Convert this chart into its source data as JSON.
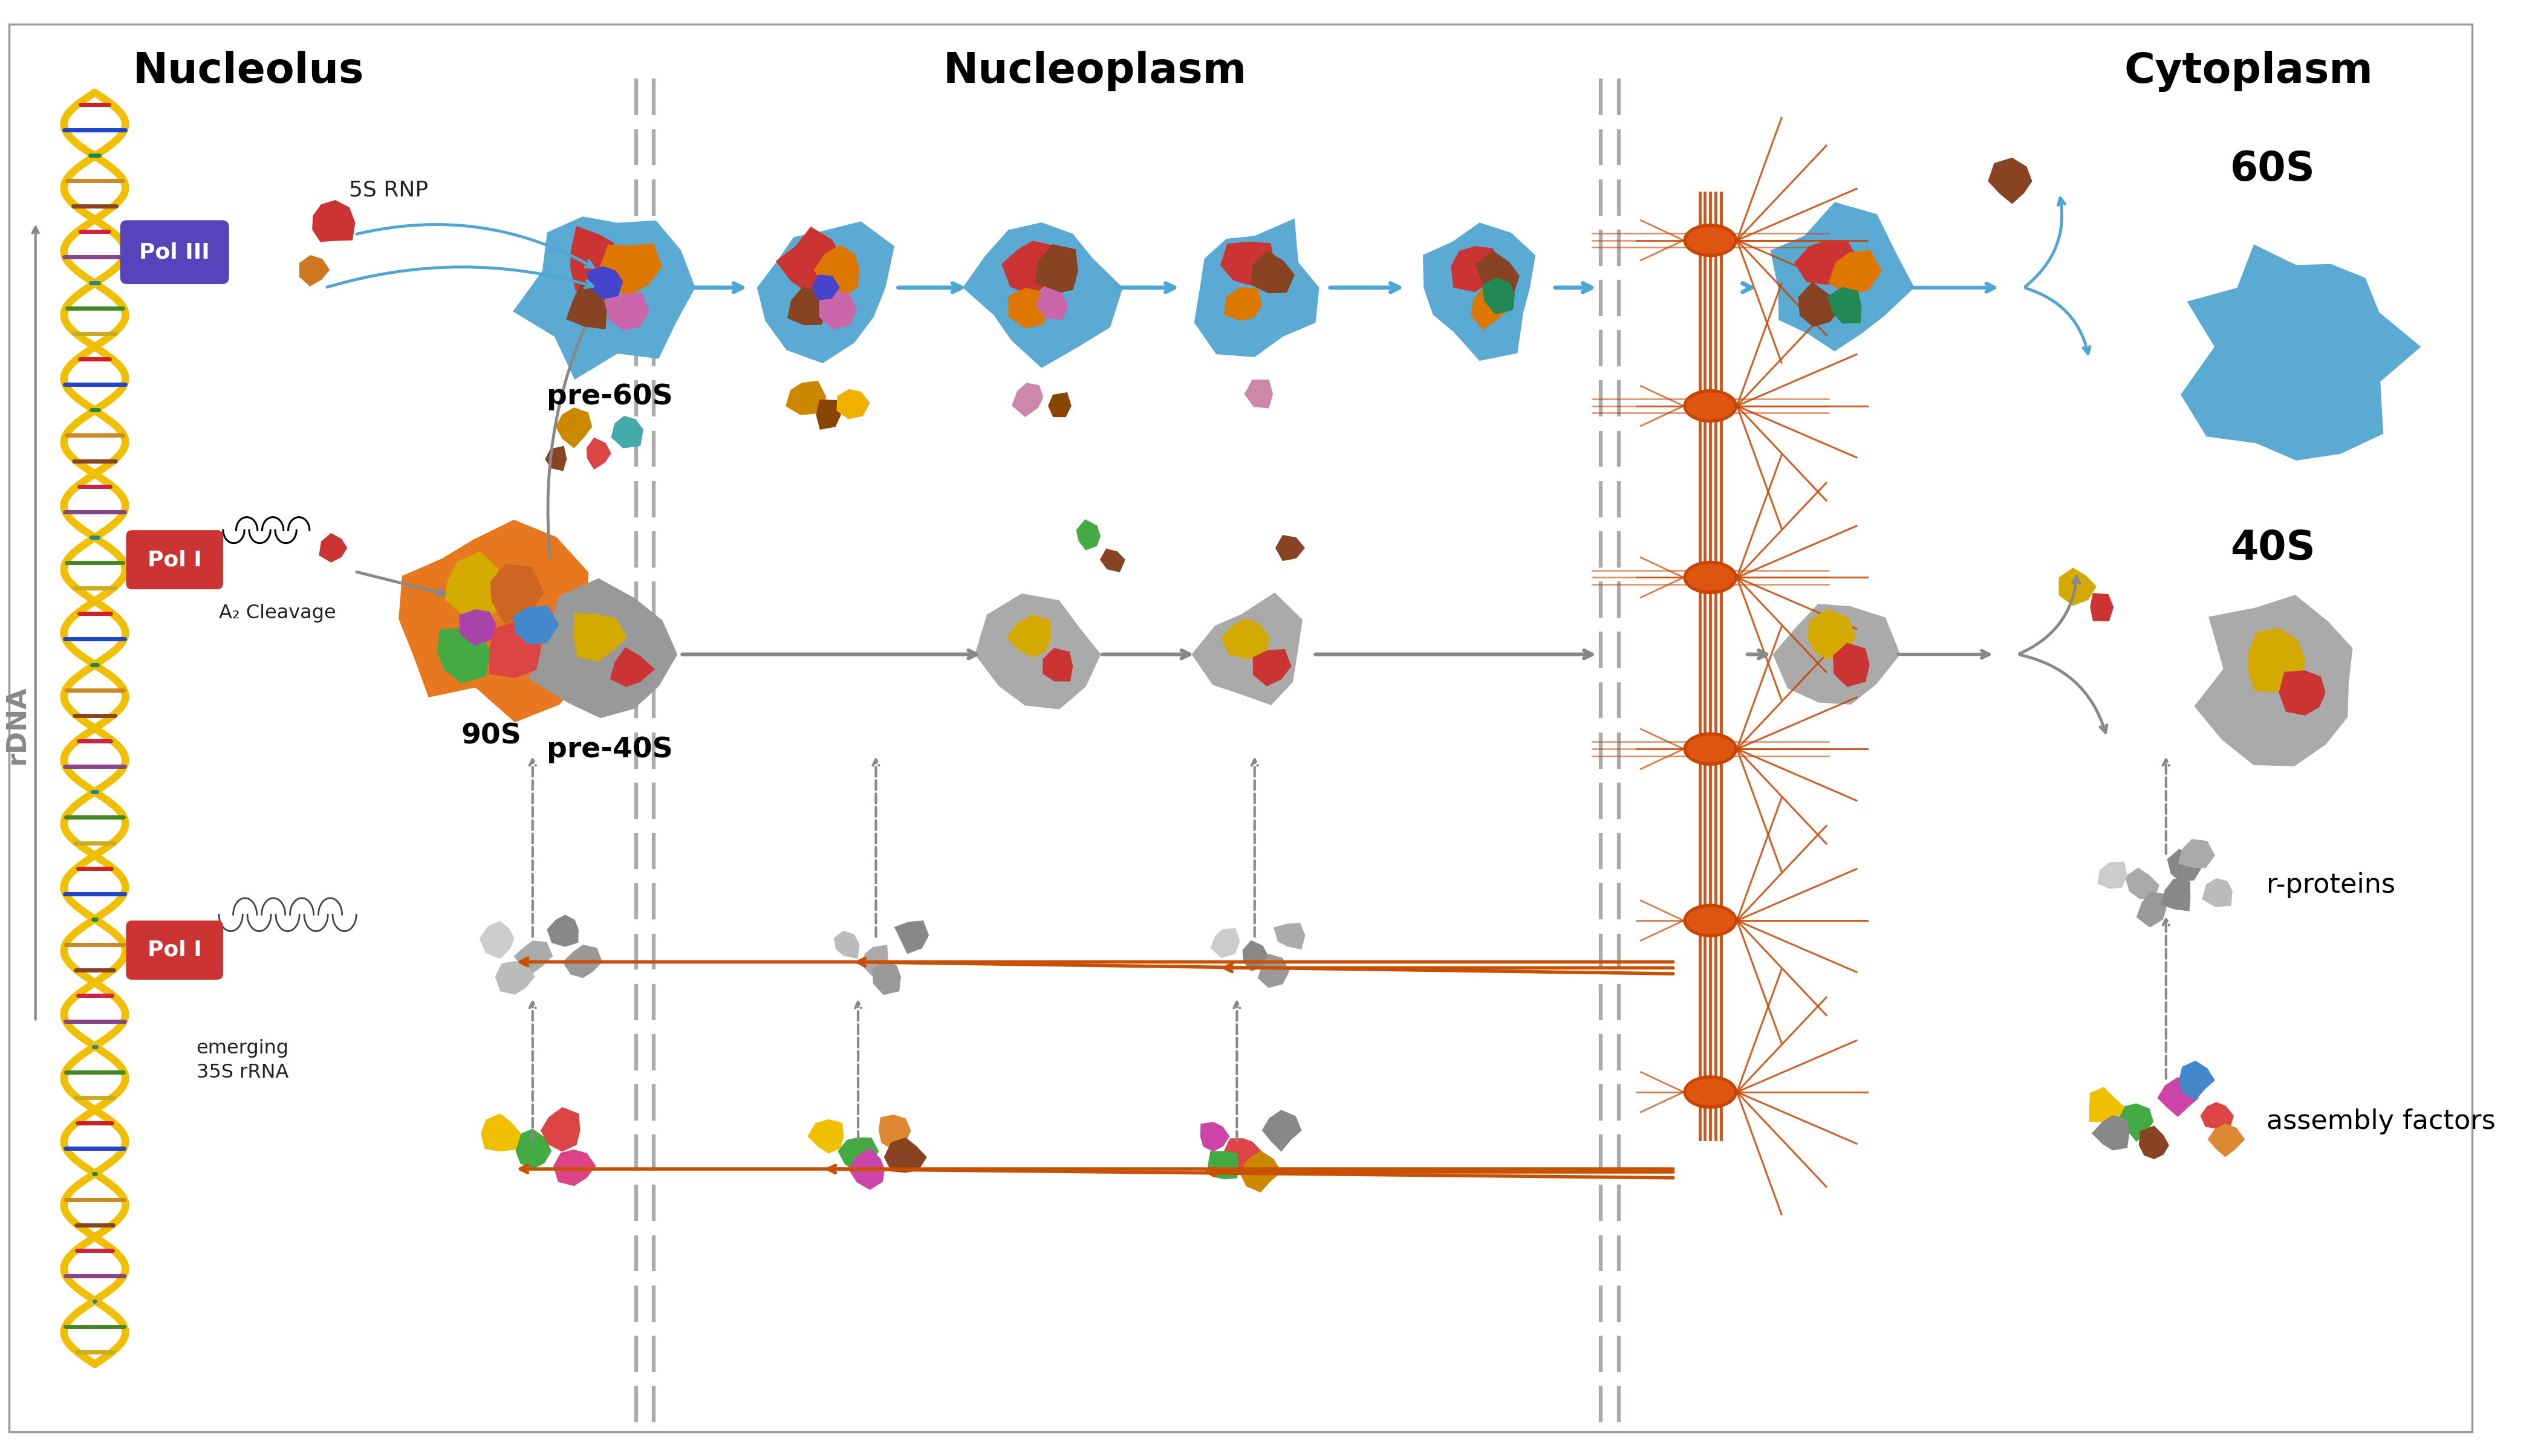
{
  "title_nucleolus": "Nucleolus",
  "title_nucleoplasm": "Nucleoplasm",
  "title_cytoplasm": "Cytoplasm",
  "label_pol3": "Pol III",
  "label_pol1a": "Pol I",
  "label_pol1b": "Pol I",
  "label_5srnp": "5S RNP",
  "label_a2cleavage": "A₂ Cleavage",
  "label_emerging": "emerging\n35S rRNA",
  "label_90s": "90S",
  "label_pre60s": "pre-60S",
  "label_pre40s": "pre-40S",
  "label_60s": "60S",
  "label_40s": "40S",
  "label_rdna": "rDNA",
  "label_rproteins": "r-proteins",
  "label_assembly": "assembly factors",
  "bg_color": "#ffffff",
  "blue_arrow_color": "#4da6d4",
  "gray_arrow_color": "#888888",
  "orange_arrow_color": "#c85000",
  "pol1_color": "#cc3333",
  "pol3_color": "#5544bb",
  "large_subunit_color": "#5aaad4",
  "small_subunit_color": "#999999",
  "orange_body_color": "#e87820",
  "pore_color": "#c84400",
  "header_fontsize": 50,
  "label_fontsize": 34,
  "small_label_fontsize": 26
}
